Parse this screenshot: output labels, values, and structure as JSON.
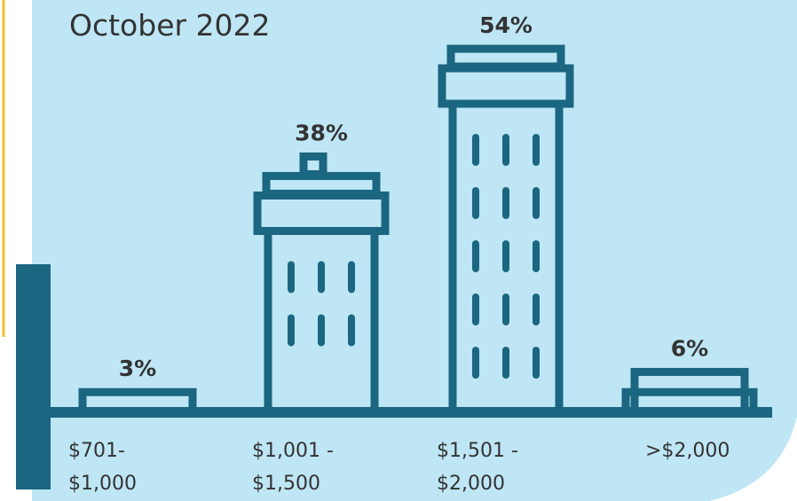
{
  "chart_data": {
    "type": "bar",
    "title": "October 2022",
    "categories": [
      "$701-\n$1,000",
      "$1,001 -\n$1,500",
      "$1,501 -\n$2,000",
      ">$2,000"
    ],
    "values": [
      3,
      38,
      54,
      6
    ],
    "value_labels": [
      "3%",
      "38%",
      "54%",
      "6%"
    ],
    "color": "#1b6680"
  }
}
